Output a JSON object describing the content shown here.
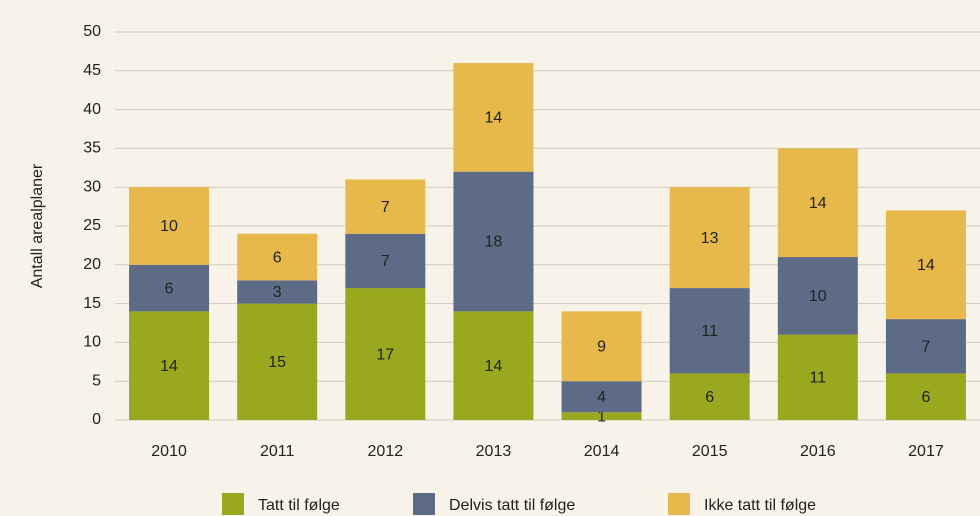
{
  "chart_data": {
    "type": "stacked_bar",
    "y_label": "Antall arealplaner",
    "categories": [
      "2010",
      "2011",
      "2012",
      "2013",
      "2014",
      "2015",
      "2016",
      "2017"
    ],
    "series": [
      {
        "name": "Tatt til følge",
        "color": "#9aa81f",
        "values": [
          14,
          15,
          17,
          14,
          1,
          6,
          11,
          6
        ]
      },
      {
        "name": "Delvis tatt til følge",
        "color": "#5e6b86",
        "values": [
          6,
          3,
          7,
          18,
          4,
          11,
          10,
          7
        ]
      },
      {
        "name": "Ikke tatt til følge",
        "color": "#e7b94b",
        "values": [
          10,
          6,
          7,
          14,
          9,
          13,
          14,
          14
        ]
      }
    ],
    "ylim": [
      0,
      50
    ],
    "yticks": [
      0,
      5,
      10,
      15,
      20,
      25,
      30,
      35,
      40,
      45,
      50
    ],
    "grid": true
  }
}
